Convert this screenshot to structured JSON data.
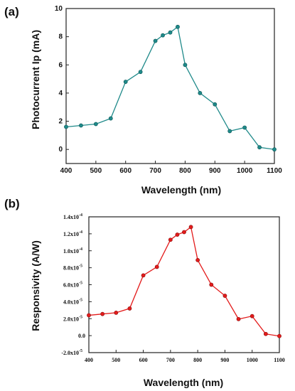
{
  "chart_data": [
    {
      "panel": "(a)",
      "type": "line",
      "xlabel": "Wavelength (nm)",
      "ylabel": "Photocurrent Ip (mA)",
      "xlim": [
        400,
        1100
      ],
      "ylim": [
        -1,
        10
      ],
      "xticks": [
        "400",
        "500",
        "600",
        "700",
        "800",
        "900",
        "1000",
        "1100"
      ],
      "yticks": [
        "0",
        "2",
        "4",
        "6",
        "8",
        "10"
      ],
      "color": "#1f8a8a",
      "x": [
        400,
        450,
        500,
        550,
        600,
        650,
        700,
        725,
        750,
        775,
        800,
        850,
        900,
        950,
        1000,
        1050,
        1100
      ],
      "y": [
        1.6,
        1.7,
        1.8,
        2.2,
        4.8,
        5.5,
        7.7,
        8.1,
        8.3,
        8.7,
        6.0,
        4.0,
        3.2,
        1.3,
        1.55,
        0.15,
        0.0
      ]
    },
    {
      "panel": "(b)",
      "type": "line",
      "xlabel": "Wavelength (nm)",
      "ylabel": "Responsivity (A/W)",
      "xlim": [
        400,
        1100
      ],
      "ylim": [
        -2e-05,
        0.00014
      ],
      "xticks": [
        "400",
        "500",
        "600",
        "700",
        "800",
        "900",
        "1000",
        "1100"
      ],
      "yticks": [
        {
          "base": "-2.0x10",
          "exp": "-5"
        },
        {
          "base": "0.0",
          "exp": ""
        },
        {
          "base": "2.0x10",
          "exp": "-5"
        },
        {
          "base": "4.0x10",
          "exp": "-5"
        },
        {
          "base": "6.0x10",
          "exp": "-5"
        },
        {
          "base": "8.0x10",
          "exp": "-5"
        },
        {
          "base": "1.0x10",
          "exp": "-4"
        },
        {
          "base": "1.2x10",
          "exp": "-4"
        },
        {
          "base": "1.4x10",
          "exp": "-4"
        }
      ],
      "color": "#e31b1b",
      "x": [
        400,
        450,
        500,
        550,
        600,
        650,
        700,
        725,
        750,
        775,
        800,
        850,
        900,
        950,
        1000,
        1050,
        1100
      ],
      "y": [
        2.4e-05,
        2.55e-05,
        2.7e-05,
        3.2e-05,
        7.1e-05,
        8.1e-05,
        0.000113,
        0.000119,
        0.000122,
        0.000128,
        8.9e-05,
        6e-05,
        4.7e-05,
        1.95e-05,
        2.3e-05,
        2e-06,
        -5e-07
      ]
    }
  ]
}
